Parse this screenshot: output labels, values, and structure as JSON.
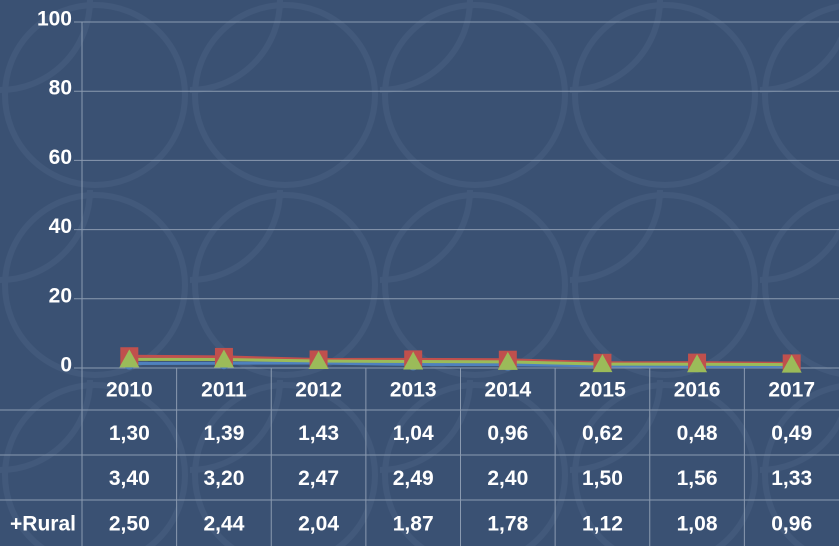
{
  "chart_data": {
    "type": "line",
    "categories": [
      "2010",
      "2011",
      "2012",
      "2013",
      "2014",
      "2015",
      "2016",
      "2017"
    ],
    "series": [
      {
        "color": "#4f81bd",
        "marker": "circle",
        "values": [
          1.3,
          1.39,
          1.43,
          1.04,
          0.96,
          0.62,
          0.48,
          0.49
        ],
        "value_labels": [
          "1,30",
          "1,39",
          "1,43",
          "1,04",
          "0,96",
          "0,62",
          "0,48",
          "0,49"
        ]
      },
      {
        "color": "#c0504d",
        "marker": "square",
        "values": [
          3.4,
          3.2,
          2.47,
          2.49,
          2.4,
          1.5,
          1.56,
          1.33
        ],
        "value_labels": [
          "3,40",
          "3,20",
          "2,47",
          "2,49",
          "2,40",
          "1,50",
          "1,56",
          "1,33"
        ]
      },
      {
        "name": "+Rural",
        "color": "#9bbb59",
        "marker": "triangle",
        "values": [
          2.5,
          2.44,
          2.04,
          1.87,
          1.78,
          1.12,
          1.08,
          0.96
        ],
        "value_labels": [
          "2,50",
          "2,44",
          "2,04",
          "1,87",
          "1,78",
          "1,12",
          "1,08",
          "0,96"
        ]
      }
    ],
    "ylim": [
      0,
      100
    ],
    "yticks": [
      0,
      20,
      40,
      60,
      80,
      100
    ],
    "grid": true
  }
}
